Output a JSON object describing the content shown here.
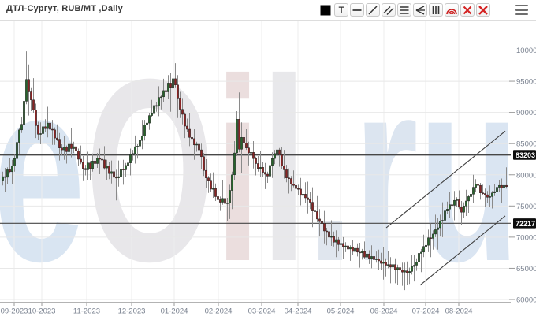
{
  "header": {
    "title": "ДТЛ-Сургут, RUB/MT ,Daily",
    "toolbar": [
      {
        "name": "color-swatch"
      },
      {
        "name": "text-tool",
        "label": "T"
      },
      {
        "name": "horizontal-line-tool"
      },
      {
        "name": "trendline-tool"
      },
      {
        "name": "channel-tool"
      },
      {
        "name": "fib-levels-tool"
      },
      {
        "name": "pitchfork-tool"
      },
      {
        "name": "vertical-lines-tool"
      },
      {
        "name": "fib-arcs-tool"
      },
      {
        "name": "delete-tool"
      },
      {
        "name": "delete-all-tool"
      }
    ],
    "menu_icon": "hamburger"
  },
  "chart_data": {
    "type": "candlestick",
    "title": "ДТЛ-Сургут, RUB/MT ,Daily",
    "watermark": "eOil.ru",
    "watermark_colors": [
      "#d8e4f2",
      "#e7e6e9",
      "#eadddd",
      "#e7e7ea",
      "#dfe5ee",
      "#dbe4f0",
      "#d9e4f2"
    ],
    "ylim": [
      60000,
      100000
    ],
    "y_ticks": [
      100000,
      95000,
      90000,
      85000,
      80000,
      75000,
      70000,
      65000,
      60000
    ],
    "x_ticks": [
      {
        "label": "09-2023",
        "x": 18
      },
      {
        "label": "10-2023",
        "x": 53
      },
      {
        "label": "11-2023",
        "x": 110
      },
      {
        "label": "12-2023",
        "x": 167
      },
      {
        "label": "01-2024",
        "x": 221
      },
      {
        "label": "02-2024",
        "x": 277
      },
      {
        "label": "03-2024",
        "x": 332
      },
      {
        "label": "04-2024",
        "x": 378
      },
      {
        "label": "05-2024",
        "x": 432
      },
      {
        "label": "06-2024",
        "x": 487
      },
      {
        "label": "07-2024",
        "x": 540
      },
      {
        "label": "08-2024",
        "x": 582
      }
    ],
    "hlines": [
      {
        "price": 83203,
        "label": "83203",
        "width": 2
      },
      {
        "price": 72217,
        "label": "72217",
        "width": 1.2
      }
    ],
    "trendlines": [
      {
        "x1": 490,
        "price1": 71500,
        "x2": 641,
        "price2": 87000
      },
      {
        "x1": 533,
        "price1": 62300,
        "x2": 641,
        "price2": 73400
      }
    ],
    "colors": {
      "up": "#26642a",
      "down": "#8b2424",
      "wick": "#8a8a8a",
      "body_outline": "#1e1e1e",
      "grid": "#e8e8e8",
      "grid_v": "#ededed",
      "axis": "#9a9a9a",
      "axis_label": "#79818f",
      "hline": "#474747",
      "trendline": "#3f3f3f",
      "tag_bg": "#0d0d0d",
      "tag_text": "#ffffff"
    },
    "candles": [
      [
        79000,
        80500,
        78300,
        79700
      ],
      [
        79700,
        81100,
        77200,
        79600
      ],
      [
        79600,
        81200,
        78500,
        80800
      ],
      [
        80800,
        82700,
        80200,
        80500
      ],
      [
        80500,
        82400,
        78500,
        81400
      ],
      [
        81400,
        83200,
        80500,
        82600
      ],
      [
        82600,
        87000,
        81000,
        85200
      ],
      [
        85200,
        87500,
        83300,
        87200
      ],
      [
        87200,
        89300,
        86700,
        88100
      ],
      [
        88100,
        96000,
        85900,
        91800
      ],
      [
        91800,
        99800,
        91300,
        95300
      ],
      [
        95300,
        97700,
        89500,
        93300
      ],
      [
        93300,
        93900,
        90200,
        92000
      ],
      [
        92000,
        95500,
        89900,
        90400
      ],
      [
        90400,
        91400,
        85900,
        87900
      ],
      [
        87900,
        88500,
        85600,
        86500
      ],
      [
        86500,
        88400,
        84900,
        86600
      ],
      [
        86600,
        88000,
        84700,
        87700
      ],
      [
        87700,
        88900,
        86900,
        87400
      ],
      [
        87400,
        90900,
        86000,
        88300
      ],
      [
        88300,
        89100,
        86600,
        87300
      ],
      [
        87300,
        88800,
        84800,
        87200
      ],
      [
        87200,
        87600,
        84800,
        85900
      ],
      [
        85900,
        88100,
        85400,
        85700
      ],
      [
        85700,
        86700,
        82300,
        84300
      ],
      [
        84300,
        84900,
        83100,
        84000
      ],
      [
        84000,
        86200,
        82400,
        84400
      ],
      [
        84400,
        84700,
        81800,
        83700
      ],
      [
        83700,
        86100,
        83200,
        84900
      ],
      [
        84900,
        87500,
        82800,
        84200
      ],
      [
        84200,
        85300,
        83500,
        84500
      ],
      [
        84500,
        86000,
        81400,
        83800
      ],
      [
        83800,
        84200,
        81400,
        82500
      ],
      [
        82500,
        84700,
        81700,
        82000
      ],
      [
        82000,
        83000,
        79000,
        81000
      ],
      [
        81000,
        81600,
        79900,
        80800
      ],
      [
        80800,
        83700,
        79200,
        81900
      ],
      [
        81900,
        82200,
        79100,
        81000
      ],
      [
        81000,
        83400,
        80500,
        82200
      ],
      [
        82200,
        84800,
        80400,
        81800
      ],
      [
        81800,
        83500,
        81100,
        82700
      ],
      [
        82700,
        84200,
        80100,
        82500
      ],
      [
        82500,
        82900,
        81300,
        82400
      ],
      [
        82400,
        84600,
        80800,
        81100
      ],
      [
        81100,
        82400,
        79100,
        81400
      ],
      [
        81400,
        82000,
        79300,
        80200
      ],
      [
        80200,
        82300,
        78600,
        80500
      ],
      [
        80500,
        80800,
        77700,
        79600
      ],
      [
        79600,
        80800,
        75900,
        79500
      ],
      [
        79500,
        82300,
        78100,
        79700
      ],
      [
        79700,
        81700,
        79000,
        80900
      ],
      [
        80900,
        82400,
        78400,
        80800
      ],
      [
        80800,
        81900,
        79700,
        81500
      ],
      [
        81500,
        84100,
        81200,
        81900
      ],
      [
        81900,
        84200,
        79900,
        83200
      ],
      [
        83200,
        84000,
        82300,
        83400
      ],
      [
        83400,
        86300,
        81800,
        84500
      ],
      [
        84500,
        84900,
        82600,
        84600
      ],
      [
        84600,
        86700,
        84100,
        85500
      ],
      [
        85500,
        88800,
        84100,
        86200
      ],
      [
        86200,
        88800,
        85500,
        88000
      ],
      [
        88000,
        89800,
        85600,
        88300
      ],
      [
        88300,
        89900,
        87200,
        89500
      ],
      [
        89500,
        92000,
        89200,
        89800
      ],
      [
        89800,
        92100,
        87800,
        91100
      ],
      [
        91100,
        91700,
        90100,
        91000
      ],
      [
        91000,
        94200,
        89400,
        92400
      ],
      [
        92400,
        92800,
        90500,
        92500
      ],
      [
        92500,
        95400,
        91700,
        93500
      ],
      [
        93500,
        97500,
        91100,
        93300
      ],
      [
        93300,
        96000,
        92200,
        94700
      ],
      [
        94700,
        96300,
        90100,
        93900
      ],
      [
        93900,
        100700,
        93200,
        95400
      ],
      [
        95400,
        97900,
        93900,
        94400
      ],
      [
        94400,
        96000,
        89100,
        92300
      ],
      [
        92300,
        93300,
        89100,
        90500
      ],
      [
        90500,
        92300,
        88100,
        89700
      ],
      [
        89700,
        90000,
        85900,
        87800
      ],
      [
        87800,
        89000,
        86800,
        87300
      ],
      [
        87300,
        89900,
        84600,
        86000
      ],
      [
        86000,
        86800,
        85100,
        85800
      ],
      [
        85800,
        87300,
        82400,
        84800
      ],
      [
        84800,
        85300,
        83700,
        84900
      ],
      [
        84900,
        87100,
        83700,
        84000
      ],
      [
        84000,
        85000,
        80900,
        82900
      ],
      [
        82900,
        83500,
        79800,
        80700
      ],
      [
        80700,
        82500,
        77900,
        79500
      ],
      [
        79500,
        79800,
        77100,
        79000
      ],
      [
        79000,
        80200,
        77200,
        77700
      ],
      [
        77700,
        80400,
        76300,
        77800
      ],
      [
        77800,
        78600,
        75800,
        76500
      ],
      [
        76500,
        78500,
        72900,
        76000
      ],
      [
        76000,
        76500,
        74200,
        75600
      ],
      [
        75600,
        79100,
        75200,
        76200
      ],
      [
        76200,
        77500,
        72400,
        75400
      ],
      [
        75400,
        76300,
        72600,
        75500
      ],
      [
        75500,
        78400,
        72900,
        77500
      ],
      [
        77500,
        80500,
        74500,
        80000
      ],
      [
        80000,
        85400,
        79200,
        83500
      ],
      [
        83500,
        90200,
        83000,
        88900
      ],
      [
        88900,
        93200,
        83600,
        84100
      ],
      [
        84100,
        88400,
        80300,
        86000
      ],
      [
        86000,
        86400,
        84000,
        85100
      ],
      [
        85100,
        87300,
        84000,
        84300
      ],
      [
        84300,
        85300,
        81500,
        83500
      ],
      [
        83500,
        84200,
        82600,
        83600
      ],
      [
        83600,
        85400,
        81000,
        82600
      ],
      [
        82600,
        82900,
        79900,
        81800
      ],
      [
        81800,
        83000,
        80500,
        81000
      ],
      [
        81000,
        83800,
        79600,
        81200
      ],
      [
        81200,
        82000,
        79700,
        80400
      ],
      [
        80400,
        81900,
        77700,
        80100
      ],
      [
        80100,
        80500,
        78700,
        79800
      ],
      [
        79800,
        83700,
        79500,
        81500
      ],
      [
        81500,
        83600,
        79500,
        82600
      ],
      [
        82600,
        84000,
        81700,
        83400
      ],
      [
        83400,
        87600,
        81800,
        84000
      ],
      [
        84000,
        84300,
        81300,
        83200
      ],
      [
        83200,
        84400,
        80900,
        81400
      ],
      [
        81400,
        84000,
        79400,
        80800
      ],
      [
        80800,
        81600,
        78800,
        79500
      ],
      [
        79500,
        81000,
        77000,
        79400
      ],
      [
        79400,
        79800,
        77400,
        78500
      ],
      [
        78500,
        80700,
        78000,
        78300
      ],
      [
        78300,
        79300,
        75800,
        77800
      ],
      [
        77800,
        78400,
        76800,
        77700
      ],
      [
        77700,
        79500,
        75100,
        76700
      ],
      [
        76700,
        77200,
        74800,
        76900
      ],
      [
        76900,
        78800,
        75500,
        76300
      ],
      [
        76300,
        78900,
        73800,
        76000
      ],
      [
        76000,
        77300,
        74500,
        75600
      ],
      [
        75600,
        78000,
        71600,
        74200
      ],
      [
        74200,
        74800,
        72300,
        74100
      ],
      [
        74100,
        76600,
        72400,
        72900
      ],
      [
        72900,
        74500,
        70100,
        72500
      ],
      [
        72500,
        73500,
        70800,
        72200
      ],
      [
        72200,
        74200,
        69000,
        71000
      ],
      [
        71000,
        71500,
        68700,
        70900
      ],
      [
        70900,
        72100,
        69500,
        70000
      ],
      [
        70000,
        72700,
        68600,
        70100
      ],
      [
        70100,
        70900,
        68500,
        69200
      ],
      [
        69200,
        71100,
        66800,
        69600
      ],
      [
        69600,
        70000,
        67700,
        68800
      ],
      [
        68800,
        71200,
        68500,
        69000
      ],
      [
        69000,
        70000,
        66500,
        68500
      ],
      [
        68500,
        69200,
        67600,
        68600
      ],
      [
        68600,
        70400,
        66500,
        68100
      ],
      [
        68100,
        68700,
        66200,
        68400
      ],
      [
        68400,
        69600,
        67200,
        67700
      ],
      [
        67700,
        70800,
        66300,
        68200
      ],
      [
        68200,
        69000,
        66900,
        67600
      ],
      [
        67600,
        69100,
        65100,
        67500
      ],
      [
        67500,
        68100,
        66400,
        67700
      ],
      [
        67700,
        69300,
        66500,
        66800
      ],
      [
        66800,
        68300,
        64800,
        67300
      ],
      [
        67300,
        67900,
        65700,
        66600
      ],
      [
        66600,
        68700,
        65000,
        66900
      ],
      [
        66900,
        67200,
        64500,
        66400
      ],
      [
        66400,
        67700,
        65900,
        66500
      ],
      [
        66500,
        68000,
        64800,
        66200
      ],
      [
        66200,
        67500,
        64700,
        65800
      ],
      [
        65800,
        68400,
        63200,
        66000
      ],
      [
        66000,
        66600,
        63700,
        65500
      ],
      [
        65500,
        67800,
        65000,
        65600
      ],
      [
        65600,
        66800,
        62600,
        65200
      ],
      [
        65200,
        66600,
        62000,
        65600
      ],
      [
        65600,
        66600,
        62600,
        64800
      ],
      [
        64800,
        65600,
        62300,
        65100
      ],
      [
        65100,
        66600,
        61900,
        64700
      ],
      [
        64700,
        65900,
        62200,
        64400
      ],
      [
        64400,
        65900,
        61500,
        64600
      ],
      [
        64600,
        66100,
        62300,
        64300
      ],
      [
        64300,
        65100,
        62500,
        64500
      ],
      [
        64500,
        67100,
        64000,
        65300
      ],
      [
        65300,
        67100,
        62900,
        65500
      ],
      [
        65500,
        66600,
        64600,
        66000
      ],
      [
        66000,
        69200,
        64400,
        67400
      ],
      [
        67400,
        68100,
        64400,
        67600
      ],
      [
        67600,
        70400,
        66800,
        68500
      ],
      [
        68500,
        71300,
        66300,
        68700
      ],
      [
        68700,
        71200,
        67600,
        69900
      ],
      [
        69900,
        72200,
        66800,
        69800
      ],
      [
        69800,
        71100,
        68000,
        70500
      ],
      [
        70500,
        73600,
        70000,
        71200
      ],
      [
        71200,
        73100,
        68000,
        71500
      ],
      [
        71500,
        73600,
        70100,
        72600
      ],
      [
        72600,
        75600,
        70000,
        72700
      ],
      [
        72700,
        74700,
        69700,
        74200
      ],
      [
        74200,
        75700,
        73700,
        74500
      ],
      [
        74500,
        77200,
        73100,
        75200
      ],
      [
        75200,
        75900,
        74400,
        75100
      ],
      [
        75100,
        77400,
        72700,
        75900
      ],
      [
        75900,
        76400,
        74800,
        76000
      ],
      [
        76000,
        77500,
        74500,
        74800
      ],
      [
        74800,
        75800,
        72000,
        74000
      ],
      [
        74000,
        75600,
        73100,
        75000
      ],
      [
        75000,
        77600,
        73400,
        75800
      ],
      [
        75800,
        76800,
        73900,
        76500
      ],
      [
        76500,
        78100,
        76000,
        76900
      ],
      [
        76900,
        80000,
        75500,
        78000
      ],
      [
        78000,
        79300,
        77300,
        78500
      ],
      [
        78500,
        79800,
        75900,
        78300
      ],
      [
        78300,
        78700,
        76000,
        77100
      ],
      [
        77100,
        78400,
        76700,
        77000
      ],
      [
        77000,
        77800,
        74800,
        76800
      ],
      [
        76800,
        77400,
        75500,
        76400
      ],
      [
        76400,
        78300,
        74900,
        76500
      ],
      [
        76500,
        77400,
        74600,
        77100
      ],
      [
        77100,
        78500,
        76600,
        77300
      ],
      [
        77300,
        80800,
        75900,
        78000
      ],
      [
        78000,
        79100,
        77300,
        78300
      ],
      [
        78300,
        79400,
        75500,
        77900
      ],
      [
        77900,
        78700,
        76800,
        78300
      ],
      [
        78300,
        81200,
        77800,
        78100
      ]
    ]
  }
}
